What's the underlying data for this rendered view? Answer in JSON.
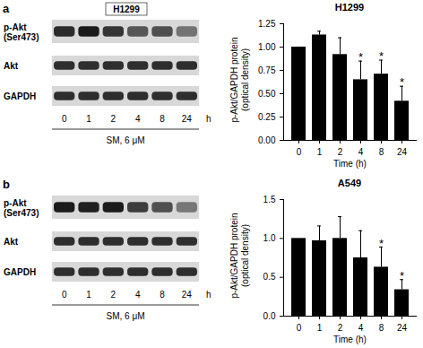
{
  "chart_data": [
    {
      "type": "bar",
      "title": "H1299",
      "x_label": "Time (h)",
      "y_label": "p-Akt/GAPDH protein\n(optical density)",
      "categories": [
        "0",
        "1",
        "2",
        "4",
        "8",
        "24"
      ],
      "values": [
        1.0,
        1.13,
        0.92,
        0.65,
        0.71,
        0.42
      ],
      "errors": [
        0,
        0.04,
        0.18,
        0.2,
        0.15,
        0.16
      ],
      "color": "#000000",
      "ylim": [
        0,
        1.25
      ],
      "yticks": [
        {
          "value": 0,
          "label": "0.00"
        },
        {
          "value": 0.25,
          "label": "0.25"
        },
        {
          "value": 0.5,
          "label": "0.50"
        },
        {
          "value": 0.75,
          "label": "0.75"
        },
        {
          "value": 1,
          "label": "1.00"
        },
        {
          "value": 1.25,
          "label": "1.25"
        }
      ],
      "annotations": [
        {
          "x": "4",
          "text": "*"
        },
        {
          "x": "8",
          "text": "*"
        },
        {
          "x": "24",
          "text": "*"
        }
      ]
    },
    {
      "type": "bar",
      "title": "A549",
      "x_label": "Time (h)",
      "y_label": "p-Akt/GAPDH protein\n(optical density)",
      "categories": [
        "0",
        "1",
        "2",
        "4",
        "8",
        "24"
      ],
      "values": [
        1.0,
        0.97,
        1.0,
        0.75,
        0.63,
        0.34
      ],
      "errors": [
        0,
        0.19,
        0.28,
        0.35,
        0.26,
        0.13
      ],
      "color": "#000000",
      "ylim": [
        0,
        1.5
      ],
      "yticks": [
        {
          "value": 0,
          "label": "0.0"
        },
        {
          "value": 0.5,
          "label": "0.5"
        },
        {
          "value": 1,
          "label": "1.0"
        },
        {
          "value": 1.5,
          "label": "1.5"
        }
      ],
      "annotations": [
        {
          "x": "8",
          "text": "*"
        },
        {
          "x": "24",
          "text": "*"
        }
      ]
    }
  ],
  "blots": [
    {
      "panel": "a",
      "title": "H1299",
      "rows": [
        "p-Akt\n(Ser473)",
        "Akt",
        "GAPDH"
      ],
      "lanes": [
        "0",
        "1",
        "2",
        "4",
        "8",
        "24"
      ],
      "lane_unit": "h",
      "treatment": "SM, 6 μM"
    },
    {
      "panel": "b",
      "rows": [
        "p-Akt\n(Ser473)",
        "Akt",
        "GAPDH"
      ],
      "lanes": [
        "0",
        "1",
        "2",
        "4",
        "8",
        "24"
      ],
      "lane_unit": "h",
      "treatment": "SM, 6 μM"
    }
  ]
}
